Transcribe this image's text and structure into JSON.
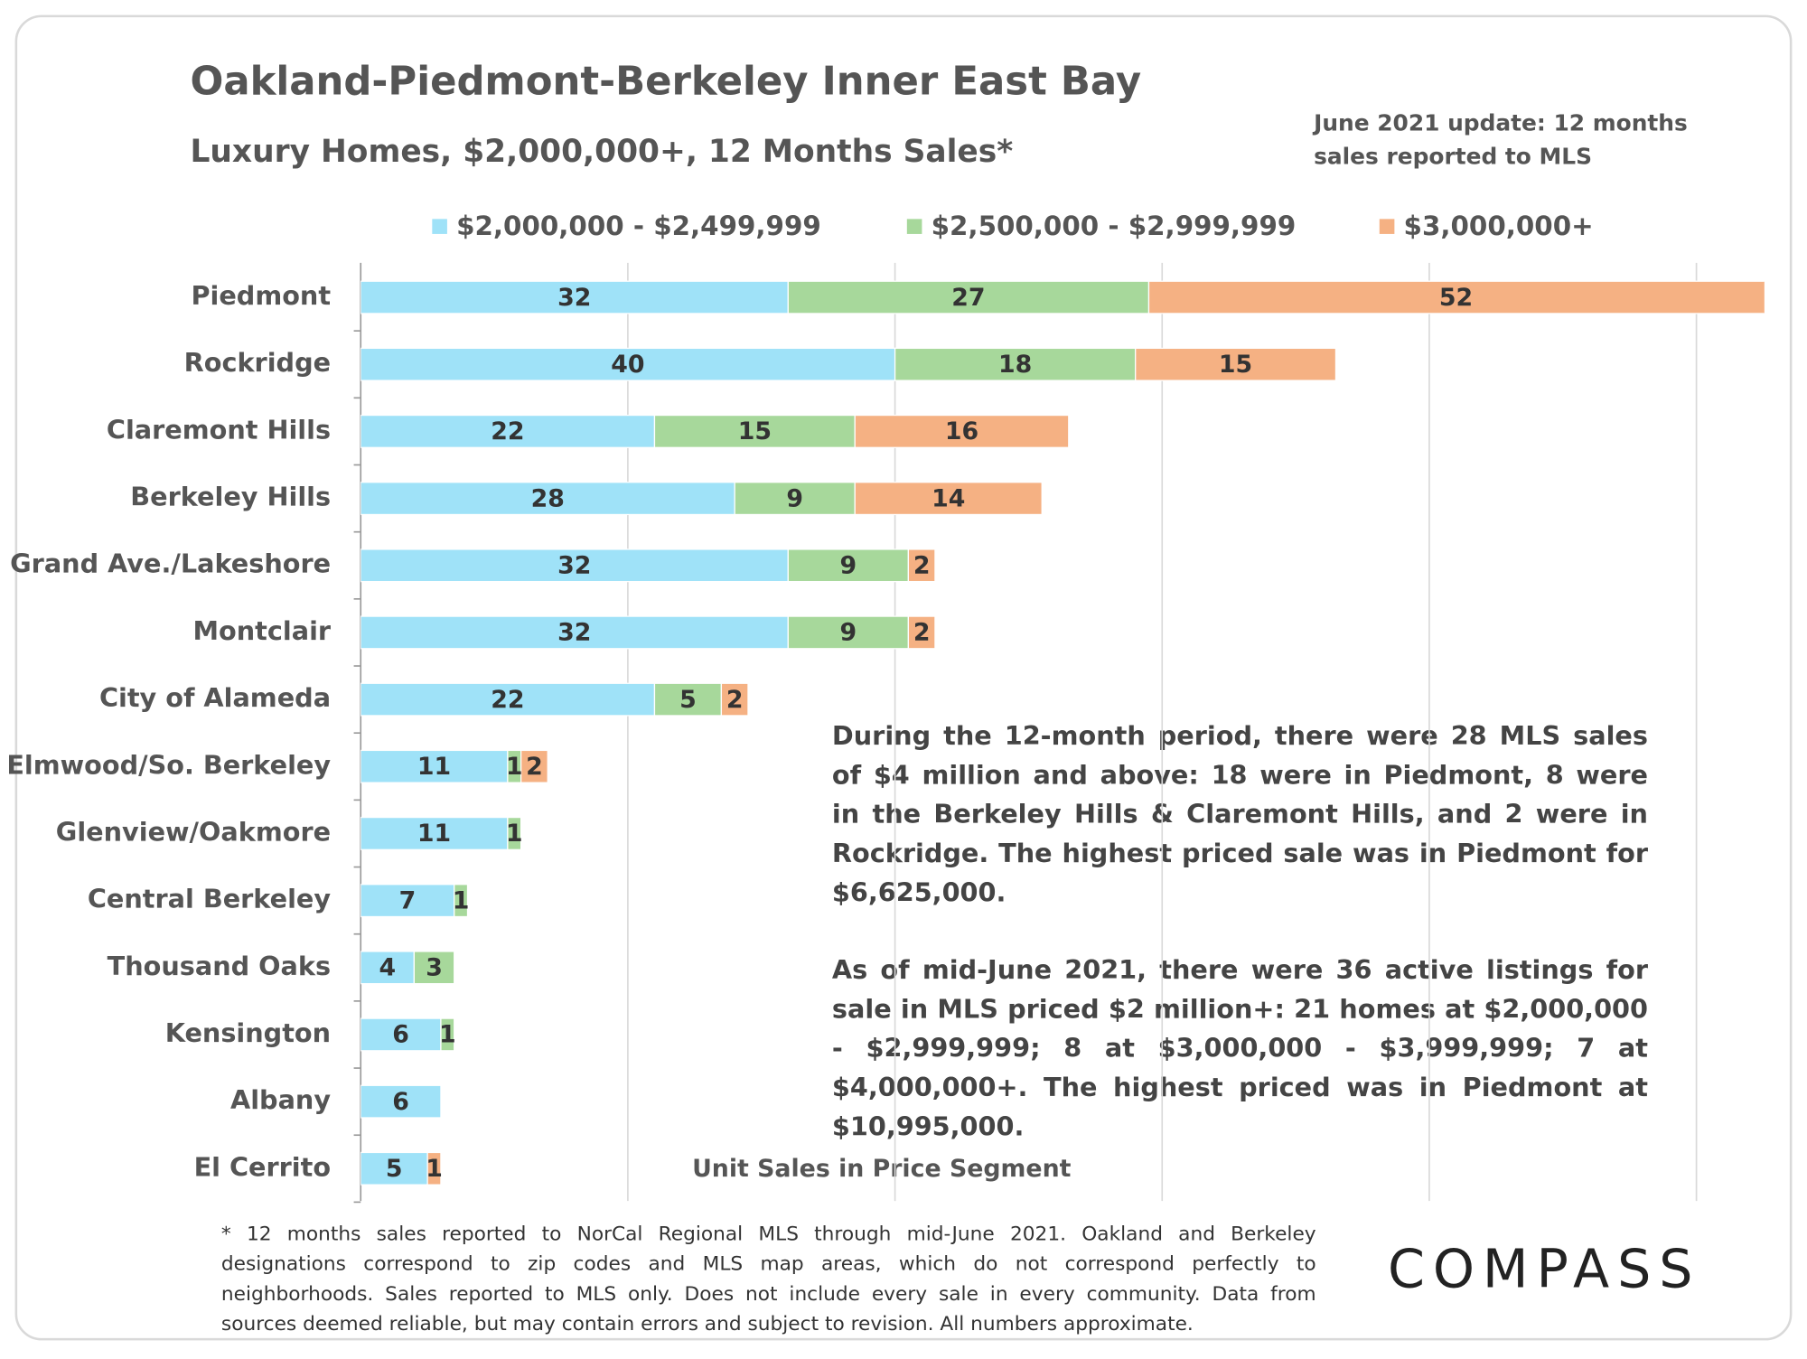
{
  "chart_data": {
    "type": "stacked-barh",
    "title": "Oakland-Piedmont-Berkeley Inner East Bay",
    "subtitle": "Luxury Homes, $2,000,000+, 12 Months Sales*",
    "note": [
      "June 2021 update: 12 months",
      "sales reported to MLS"
    ],
    "xlabel": "Unit Sales in Price Segment",
    "categories": [
      "Piedmont",
      "Rockridge",
      "Claremont Hills",
      "Berkeley Hills",
      "Grand Ave./Lakeshore",
      "Montclair",
      "City of Alameda",
      "Elmwood/So. Berkeley",
      "Glenview/Oakmore",
      "Central Berkeley",
      "Thousand Oaks",
      "Kensington",
      "Albany",
      "El Cerrito"
    ],
    "series": [
      {
        "name": "$2,000,000 - $2,499,999",
        "color": "#9fe2f8",
        "values": [
          32,
          40,
          22,
          28,
          32,
          32,
          22,
          11,
          11,
          7,
          4,
          6,
          6,
          5
        ]
      },
      {
        "name": "$2,500,000 - $2,999,999",
        "color": "#a7d89b",
        "values": [
          27,
          18,
          15,
          9,
          9,
          9,
          5,
          1,
          1,
          1,
          3,
          1,
          null,
          null
        ]
      },
      {
        "name": "$3,000,000+",
        "color": "#f5b183",
        "values": [
          52,
          15,
          16,
          14,
          2,
          2,
          2,
          2,
          null,
          null,
          null,
          null,
          null,
          1
        ]
      }
    ],
    "xlim": [
      0,
      105
    ],
    "xticks": [
      0,
      20,
      40,
      60,
      80,
      100
    ],
    "grid": true,
    "legend": "top",
    "annotations": [
      "During the 12-month period, there were 28 MLS sales of $4 million and above: 18 were in Piedmont, 8 were in the Berkeley Hills & Claremont Hills, and 2 were in Rockridge. The highest priced sale was in Piedmont for $6,625,000.",
      "As of mid-June 2021, there were 36 active listings for sale in MLS priced $2 million+: 21 homes at $2,000,000 - $2,999,999; 8 at $3,000,000 - $3,999,999; 7 at $4,000,000+. The highest priced was in Piedmont at $10,995,000."
    ],
    "footnote": "* 12 months sales reported to NorCal Regional MLS through mid-June 2021. Oakland and Berkeley designations correspond to zip codes and MLS map areas, which do not correspond perfectly to neighborhoods. Sales reported to MLS only. Does not include every sale in every community. Data from sources deemed reliable, but may contain errors and subject to revision. All numbers approximate.",
    "brand": "COMPASS"
  }
}
